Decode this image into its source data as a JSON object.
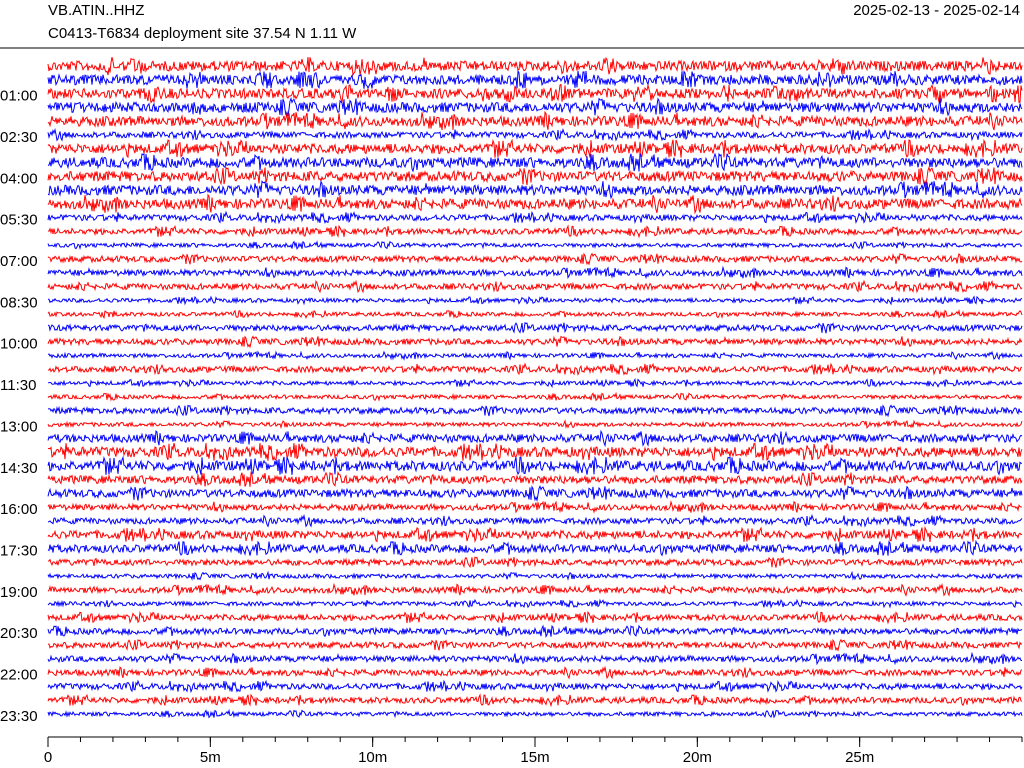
{
  "chart_data": {
    "type": "helicorder",
    "title": "VB.ATIN..HHZ",
    "subtitle": "C0413-T6834 deployment site  37.54 N 1.11 W",
    "date_range": "2025-02-13 - 2025-02-14",
    "colors": [
      "#ff0000",
      "#0000ff"
    ],
    "categories": [
      null,
      null,
      "01:00",
      null,
      null,
      "02:30",
      null,
      null,
      "04:00",
      null,
      null,
      "05:30",
      null,
      null,
      "07:00",
      null,
      null,
      "08:30",
      null,
      null,
      "10:00",
      null,
      null,
      "11:30",
      null,
      null,
      "13:00",
      null,
      null,
      "14:30",
      null,
      null,
      "16:00",
      null,
      null,
      "17:30",
      null,
      null,
      "19:00",
      null,
      null,
      "20:30",
      null,
      null,
      "22:00",
      null,
      null,
      "23:30"
    ],
    "amplitudes": [
      5,
      5,
      5,
      5,
      5,
      3,
      5,
      5,
      5,
      5,
      5,
      3,
      3,
      2,
      3,
      3,
      3,
      2,
      2,
      3,
      3,
      2,
      3,
      2,
      2,
      3,
      2,
      4,
      5,
      5,
      4,
      4,
      3,
      3,
      4,
      4,
      3,
      2,
      3,
      2,
      3,
      3,
      3,
      3,
      3,
      3,
      3,
      2
    ],
    "xlim": [
      0,
      30
    ],
    "xticks": [
      0,
      {
        "value": 5,
        "label": "5m"
      },
      {
        "value": 10,
        "label": "10m"
      },
      {
        "value": 15,
        "label": "15m"
      },
      {
        "value": 20,
        "label": "20m"
      },
      {
        "value": 25,
        "label": "25m"
      }
    ]
  }
}
